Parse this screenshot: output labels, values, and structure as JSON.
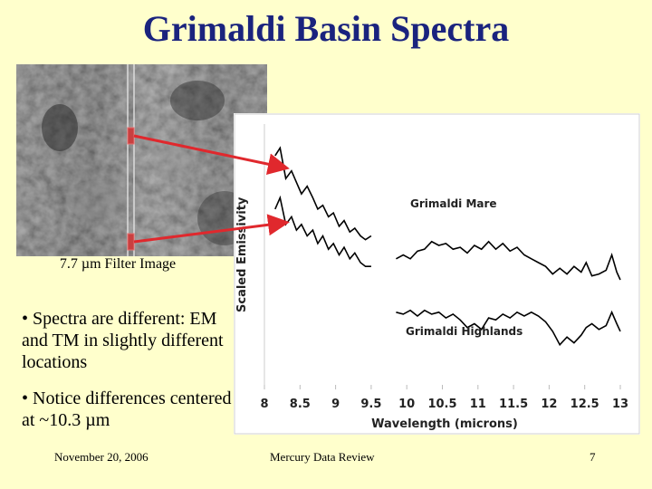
{
  "slide": {
    "title": "Grimaldi Basin Spectra",
    "filter_caption": "7.7 µm Filter Image",
    "bullets": [
      "• Spectra are different: EM and TM in slightly different locations",
      "• Notice differences centered at ~10.3 µm"
    ],
    "footer_date": "November 20, 2006",
    "footer_center": "Mercury Data Review",
    "page_number": "7"
  },
  "colors": {
    "title": "#1a237e",
    "arrows": "#e0282d",
    "background": "#ffffcc"
  },
  "chart_data": {
    "type": "line",
    "xlabel": "Wavelength (microns)",
    "ylabel": "Scaled Emissivity",
    "xlim": [
      8,
      13
    ],
    "x_ticks": [
      "8",
      "8.5",
      "9",
      "9.5",
      "10",
      "10.5",
      "11",
      "11.5",
      "12",
      "12.5",
      "13"
    ],
    "series": [
      {
        "name": "Grimaldi Mare",
        "segments": [
          {
            "x": [
              8.15,
              8.22,
              8.3,
              8.38,
              8.45,
              8.52,
              8.6,
              8.68,
              8.75,
              8.82,
              8.9,
              8.97,
              9.05,
              9.12,
              9.2,
              9.27,
              9.35,
              9.42,
              9.5
            ],
            "y": [
              0.92,
              0.96,
              0.8,
              0.84,
              0.78,
              0.72,
              0.76,
              0.7,
              0.64,
              0.66,
              0.6,
              0.62,
              0.55,
              0.58,
              0.52,
              0.54,
              0.5,
              0.48,
              0.5
            ]
          },
          {
            "x": [
              9.85,
              9.95,
              10.05,
              10.15,
              10.25,
              10.35,
              10.45,
              10.55,
              10.65,
              10.75,
              10.85,
              10.95,
              11.05,
              11.15,
              11.25,
              11.35,
              11.45,
              11.55,
              11.65,
              11.75,
              11.85,
              11.95,
              12.05,
              12.15,
              12.25,
              12.35,
              12.45,
              12.52,
              12.6,
              12.7,
              12.8,
              12.88,
              12.95,
              13.0
            ],
            "y": [
              0.38,
              0.4,
              0.38,
              0.42,
              0.43,
              0.47,
              0.45,
              0.46,
              0.43,
              0.44,
              0.41,
              0.45,
              0.43,
              0.47,
              0.43,
              0.46,
              0.42,
              0.44,
              0.4,
              0.38,
              0.36,
              0.34,
              0.3,
              0.33,
              0.3,
              0.34,
              0.31,
              0.36,
              0.29,
              0.3,
              0.32,
              0.4,
              0.31,
              0.27
            ]
          }
        ]
      },
      {
        "name": "Grimaldi Highlands",
        "segments": [
          {
            "x": [
              8.15,
              8.22,
              8.3,
              8.38,
              8.45,
              8.52,
              8.6,
              8.68,
              8.75,
              8.82,
              8.9,
              8.97,
              9.05,
              9.12,
              9.2,
              9.27,
              9.35,
              9.42,
              9.5
            ],
            "y": [
              0.64,
              0.7,
              0.56,
              0.6,
              0.53,
              0.56,
              0.5,
              0.53,
              0.46,
              0.5,
              0.43,
              0.46,
              0.4,
              0.44,
              0.38,
              0.41,
              0.36,
              0.34,
              0.34
            ]
          },
          {
            "x": [
              9.85,
              9.95,
              10.05,
              10.15,
              10.25,
              10.35,
              10.45,
              10.55,
              10.65,
              10.75,
              10.85,
              10.95,
              11.05,
              11.15,
              11.25,
              11.35,
              11.45,
              11.55,
              11.65,
              11.75,
              11.85,
              11.95,
              12.05,
              12.15,
              12.25,
              12.35,
              12.45,
              12.52,
              12.6,
              12.7,
              12.8,
              12.88,
              12.95,
              13.0
            ],
            "y": [
              0.1,
              0.09,
              0.11,
              0.08,
              0.11,
              0.09,
              0.1,
              0.07,
              0.09,
              0.06,
              0.02,
              0.04,
              0.01,
              0.07,
              0.06,
              0.09,
              0.07,
              0.1,
              0.08,
              0.1,
              0.08,
              0.05,
              0.0,
              -0.07,
              -0.03,
              -0.06,
              -0.02,
              0.02,
              0.04,
              0.01,
              0.03,
              0.1,
              0.04,
              0.0
            ]
          }
        ]
      }
    ]
  }
}
